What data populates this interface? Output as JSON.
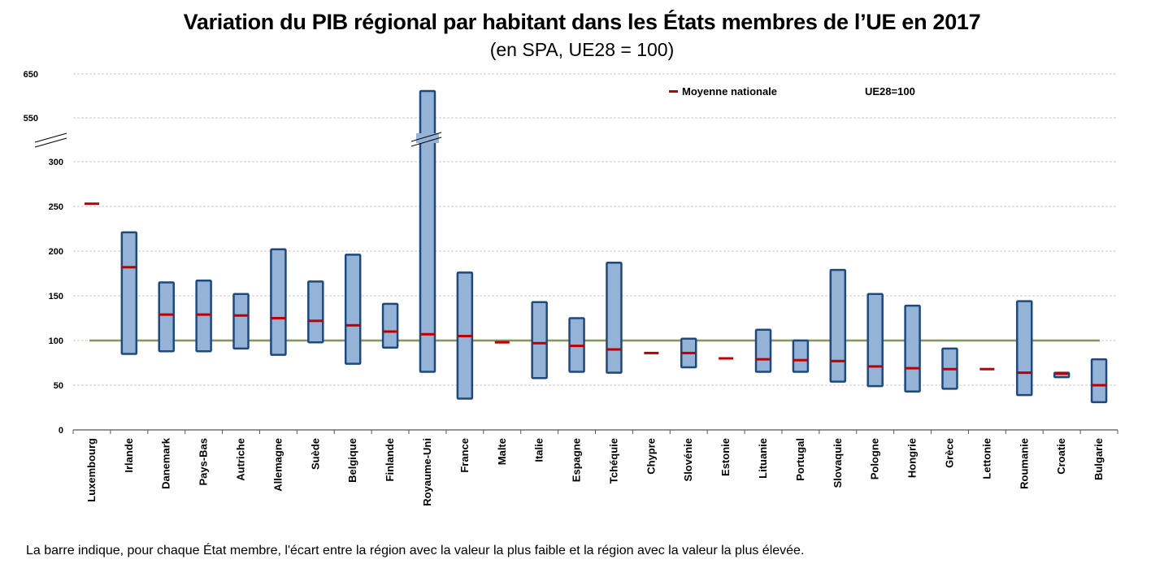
{
  "chart_data": {
    "type": "bar",
    "subtype": "floating-range-with-marker",
    "title": "Variation du PIB régional par habitant dans les États membres de l’UE en 2017",
    "subtitle": "(en SPA, UE28 = 100)",
    "xlabel": "",
    "ylabel": "",
    "y_ticks": [
      0,
      50,
      100,
      150,
      200,
      250,
      300,
      550,
      650
    ],
    "y_axis_break": [
      300,
      550
    ],
    "ylim": [
      0,
      650
    ],
    "grid": true,
    "reference_line": {
      "label": "UE28=100",
      "value": 100,
      "color": "#6b7f3d"
    },
    "legend": {
      "position": "top-right",
      "entries": [
        {
          "label": "Moyenne nationale",
          "color": "#c00000"
        },
        {
          "label": "UE28=100",
          "color": "#6b7f3d"
        }
      ]
    },
    "categories": [
      "Luxembourg",
      "Irlande",
      "Danemark",
      "Pays-Bas",
      "Autriche",
      "Allemagne",
      "Suède",
      "Belgique",
      "Finlande",
      "Royaume-Uni",
      "France",
      "Malte",
      "Italie",
      "Espagne",
      "Tchéquie",
      "Chypre",
      "Slovénie",
      "Estonie",
      "Lituanie",
      "Portugal",
      "Slovaquie",
      "Pologne",
      "Hongrie",
      "Grèce",
      "Lettonie",
      "Roumanie",
      "Croatie",
      "Bulgarie"
    ],
    "series": [
      {
        "name": "Région min",
        "values": [
          null,
          85,
          88,
          88,
          91,
          84,
          98,
          74,
          92,
          65,
          35,
          null,
          58,
          65,
          64,
          null,
          70,
          null,
          65,
          65,
          54,
          49,
          43,
          46,
          null,
          39,
          59,
          31
        ]
      },
      {
        "name": "Région max",
        "values": [
          null,
          221,
          165,
          167,
          152,
          202,
          166,
          196,
          141,
          611,
          176,
          null,
          143,
          125,
          187,
          null,
          102,
          null,
          112,
          100,
          179,
          152,
          139,
          91,
          null,
          144,
          64,
          79
        ]
      },
      {
        "name": "Moyenne nationale",
        "values": [
          253,
          182,
          129,
          129,
          128,
          125,
          122,
          117,
          110,
          107,
          105,
          98,
          97,
          94,
          90,
          86,
          86,
          80,
          79,
          78,
          77,
          71,
          69,
          68,
          68,
          64,
          63,
          50
        ]
      }
    ],
    "colors": {
      "bar_fill": "#95b3d7",
      "bar_stroke": "#1f497d",
      "mean_marker": "#c00000",
      "reference": "#6b7f3d",
      "grid": "#c8c8c8"
    }
  },
  "footnote": "La barre indique, pour chaque État membre, l'écart entre la région avec la valeur la plus faible et la région avec la valeur la plus élevée."
}
